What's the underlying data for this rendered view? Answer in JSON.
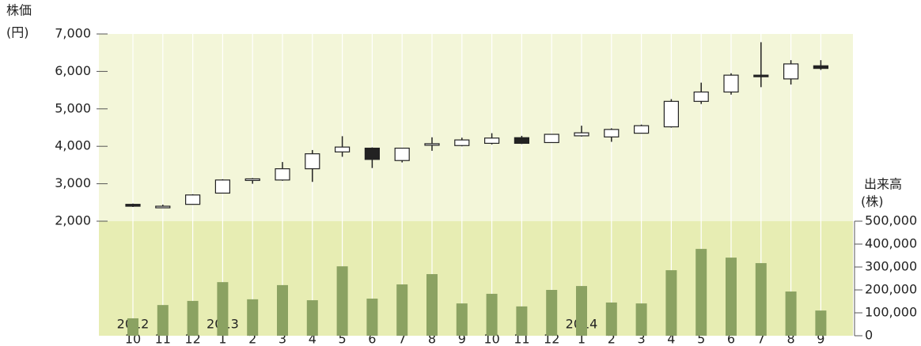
{
  "chart_data": {
    "type": "candlestick",
    "y_label_top": "株価",
    "y_label_unit": "(円)",
    "y2_label_top": "出来高",
    "y2_label_unit": "(株)",
    "categories": [
      "10",
      "11",
      "12",
      "1",
      "2",
      "3",
      "4",
      "5",
      "6",
      "7",
      "8",
      "9",
      "10",
      "11",
      "12",
      "1",
      "2",
      "3",
      "4",
      "5",
      "6",
      "7",
      "8",
      "9"
    ],
    "years": [
      "2012",
      null,
      null,
      "2013",
      null,
      null,
      null,
      null,
      null,
      null,
      null,
      null,
      null,
      null,
      null,
      "2014",
      null,
      null,
      null,
      null,
      null,
      null,
      null,
      null
    ],
    "ylim": [
      2000,
      7000
    ],
    "yticks": [
      {
        "value": 2000,
        "label": "2,000"
      },
      {
        "value": 3000,
        "label": "3,000"
      },
      {
        "value": 4000,
        "label": "4,000"
      },
      {
        "value": 5000,
        "label": "5,000"
      },
      {
        "value": 6000,
        "label": "6,000"
      },
      {
        "value": 7000,
        "label": "7,000"
      }
    ],
    "y2lim": [
      0,
      500000
    ],
    "y2ticks": [
      0,
      {
        "value": 100000,
        "label": "100,000"
      },
      {
        "value": 200000,
        "label": "200,000"
      },
      {
        "value": 300000,
        "label": "300,000"
      },
      {
        "value": 400000,
        "label": "400,000"
      },
      {
        "value": 500000,
        "label": "500,000"
      }
    ],
    "candles": {
      "color": "#222222",
      "open": [
        2450,
        2390,
        2450,
        2750,
        3090,
        3100,
        3400,
        3850,
        3950,
        3620,
        4040,
        4020,
        4080,
        4230,
        4100,
        4280,
        4250,
        4350,
        4520,
        5200,
        5450,
        5900,
        5800,
        6150
      ],
      "high": [
        2470,
        2440,
        2720,
        3120,
        3150,
        3580,
        3900,
        4270,
        3970,
        3960,
        4240,
        4230,
        4350,
        4280,
        4330,
        4550,
        4480,
        4580,
        5260,
        5700,
        5950,
        6780,
        6300,
        6300
      ],
      "low": [
        2380,
        2370,
        2440,
        2740,
        3000,
        3080,
        3050,
        3720,
        3420,
        3570,
        3880,
        4000,
        4050,
        4060,
        4090,
        4260,
        4120,
        4340,
        4500,
        5130,
        5380,
        5580,
        5650,
        6040
      ],
      "close": [
        2400,
        2400,
        2700,
        3100,
        3130,
        3400,
        3800,
        3980,
        3650,
        3950,
        4070,
        4170,
        4220,
        4080,
        4320,
        4360,
        4450,
        4550,
        5200,
        5450,
        5900,
        5870,
        6200,
        6080
      ]
    },
    "volume": {
      "axis": "y2",
      "color": "#8ba262",
      "values": [
        76000,
        134000,
        152000,
        234000,
        159000,
        221000,
        155000,
        303000,
        162000,
        224000,
        269000,
        141000,
        183000,
        128000,
        200000,
        217000,
        145000,
        141000,
        286000,
        379000,
        341000,
        317000,
        193000,
        110000
      ]
    }
  }
}
